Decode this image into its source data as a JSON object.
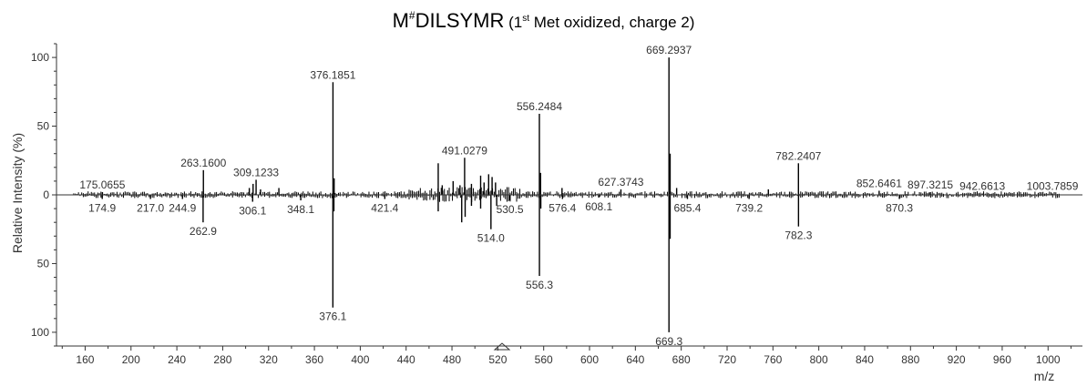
{
  "title": {
    "peptide_prefix": "M",
    "mod_symbol": "#",
    "peptide_rest": "DILSYMR",
    "paren_open": " (1",
    "ordinal": "st",
    "paren_rest": " Met oxidized, charge 2)"
  },
  "chart_data": {
    "type": "bar",
    "xlabel": "m/z",
    "ylabel": "Relative Intensity (%)",
    "xlim": [
      135,
      1030
    ],
    "ylim": [
      -110,
      110
    ],
    "x_ticks": [
      160,
      200,
      240,
      280,
      320,
      360,
      400,
      440,
      480,
      520,
      560,
      600,
      640,
      680,
      720,
      760,
      800,
      840,
      880,
      920,
      960,
      1000
    ],
    "y_ticks": [
      {
        "value": 100,
        "label": "100"
      },
      {
        "value": 50,
        "label": "50"
      },
      {
        "value": 0,
        "label": "0"
      },
      {
        "value": -50,
        "label": "50"
      },
      {
        "value": -100,
        "label": "100"
      }
    ],
    "series": [
      {
        "values": [
          {
            "x": 175.0655,
            "y": 2,
            "label": "175.0655"
          },
          {
            "x": 263.16,
            "y": 18,
            "label": "263.1600"
          },
          {
            "x": 303.2,
            "y": 5
          },
          {
            "x": 306.5,
            "y": 8
          },
          {
            "x": 309.1233,
            "y": 11,
            "label": "309.1233"
          },
          {
            "x": 313.0,
            "y": 4
          },
          {
            "x": 329.0,
            "y": 5
          },
          {
            "x": 376.1851,
            "y": 82,
            "label": "376.1851"
          },
          {
            "x": 377.2,
            "y": 12
          },
          {
            "x": 468.0,
            "y": 23
          },
          {
            "x": 471.5,
            "y": 7
          },
          {
            "x": 481.0,
            "y": 10
          },
          {
            "x": 487.0,
            "y": 7
          },
          {
            "x": 491.0279,
            "y": 27,
            "label": "491.0279"
          },
          {
            "x": 497.0,
            "y": 8
          },
          {
            "x": 505.0,
            "y": 14
          },
          {
            "x": 508.0,
            "y": 9
          },
          {
            "x": 512.0,
            "y": 15
          },
          {
            "x": 515.0,
            "y": 13
          },
          {
            "x": 518.0,
            "y": 9
          },
          {
            "x": 556.2484,
            "y": 59,
            "label": "556.2484"
          },
          {
            "x": 557.3,
            "y": 16
          },
          {
            "x": 576.0,
            "y": 5
          },
          {
            "x": 627.3743,
            "y": 4,
            "label": "627.3743"
          },
          {
            "x": 669.2937,
            "y": 100,
            "label": "669.2937"
          },
          {
            "x": 670.3,
            "y": 30
          },
          {
            "x": 676.0,
            "y": 5
          },
          {
            "x": 756.0,
            "y": 4
          },
          {
            "x": 782.2407,
            "y": 23,
            "label": "782.2407"
          },
          {
            "x": 852.6461,
            "y": 3,
            "label": "852.6461"
          },
          {
            "x": 897.3215,
            "y": 2,
            "label": "897.3215"
          },
          {
            "x": 942.6613,
            "y": 1,
            "label": "942.6613"
          },
          {
            "x": 1003.7859,
            "y": 1,
            "label": "1003.7859"
          }
        ]
      },
      {
        "values": [
          {
            "x": 174.9,
            "y": -3,
            "label": "174.9"
          },
          {
            "x": 217.0,
            "y": -3,
            "label": "217.0"
          },
          {
            "x": 244.9,
            "y": -3,
            "label": "244.9"
          },
          {
            "x": 262.9,
            "y": -20,
            "label": "262.9"
          },
          {
            "x": 306.1,
            "y": -5,
            "label": "306.1"
          },
          {
            "x": 348.1,
            "y": -4,
            "label": "348.1"
          },
          {
            "x": 376.1,
            "y": -82,
            "label": "376.1"
          },
          {
            "x": 377.0,
            "y": -12
          },
          {
            "x": 421.4,
            "y": -3,
            "label": "421.4"
          },
          {
            "x": 468.0,
            "y": -12
          },
          {
            "x": 488.5,
            "y": -20
          },
          {
            "x": 491.5,
            "y": -16
          },
          {
            "x": 497.0,
            "y": -8
          },
          {
            "x": 505.0,
            "y": -10
          },
          {
            "x": 514.0,
            "y": -25,
            "label": "514.0"
          },
          {
            "x": 519.0,
            "y": -8
          },
          {
            "x": 530.5,
            "y": -4,
            "label": "530.5"
          },
          {
            "x": 556.3,
            "y": -59,
            "label": "556.3"
          },
          {
            "x": 557.5,
            "y": -10
          },
          {
            "x": 576.4,
            "y": -3,
            "label": "576.4"
          },
          {
            "x": 608.1,
            "y": -2,
            "label": "608.1"
          },
          {
            "x": 669.3,
            "y": -100,
            "label": "669.3"
          },
          {
            "x": 670.3,
            "y": -32
          },
          {
            "x": 685.4,
            "y": -3,
            "label": "685.4"
          },
          {
            "x": 739.2,
            "y": -3,
            "label": "739.2"
          },
          {
            "x": 782.3,
            "y": -23,
            "label": "782.3"
          },
          {
            "x": 870.3,
            "y": -3,
            "label": "870.3"
          }
        ]
      }
    ],
    "noise_spans": [
      [
        150,
        1010
      ]
    ],
    "colors": {
      "peaks": "#000000",
      "axis": "#333333",
      "text": "#333333"
    }
  }
}
